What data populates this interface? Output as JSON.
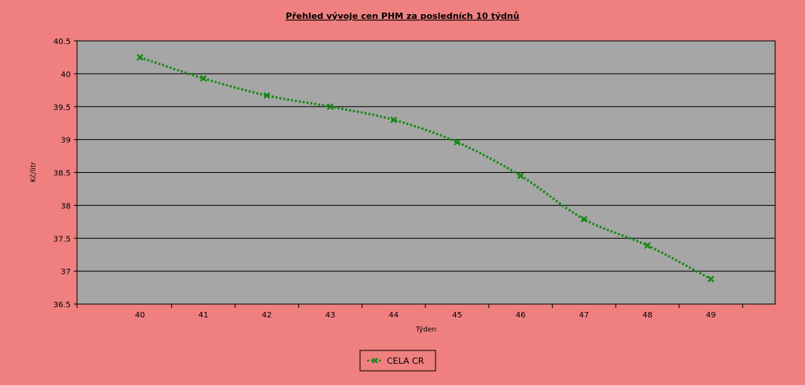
{
  "chart_data": {
    "type": "line",
    "title": "Přehled vývoje cen PHM za posledních 10 týdnů",
    "xlabel": "Týden",
    "ylabel": "Kč/litr",
    "x": [
      40,
      41,
      42,
      43,
      44,
      45,
      46,
      47,
      48,
      49
    ],
    "series": [
      {
        "name": "CELA CR",
        "values": [
          40.25,
          39.93,
          39.67,
          39.5,
          39.3,
          38.96,
          38.45,
          37.79,
          37.39,
          36.88
        ],
        "color": "#118811",
        "marker": "x",
        "line_style": "dotted"
      }
    ],
    "ylim": [
      36.5,
      40.5
    ],
    "y_ticks": [
      "36.5",
      "37",
      "37.5",
      "38",
      "38.5",
      "39",
      "39.5",
      "40",
      "40.5"
    ],
    "x_ticks": [
      "40",
      "41",
      "42",
      "43",
      "44",
      "45",
      "46",
      "47",
      "48",
      "49"
    ],
    "grid": "horizontal",
    "legend_position": "bottom-center",
    "colors": {
      "background": "#f08080",
      "plot_background": "#a6a6a6",
      "gridline": "#000000"
    }
  }
}
